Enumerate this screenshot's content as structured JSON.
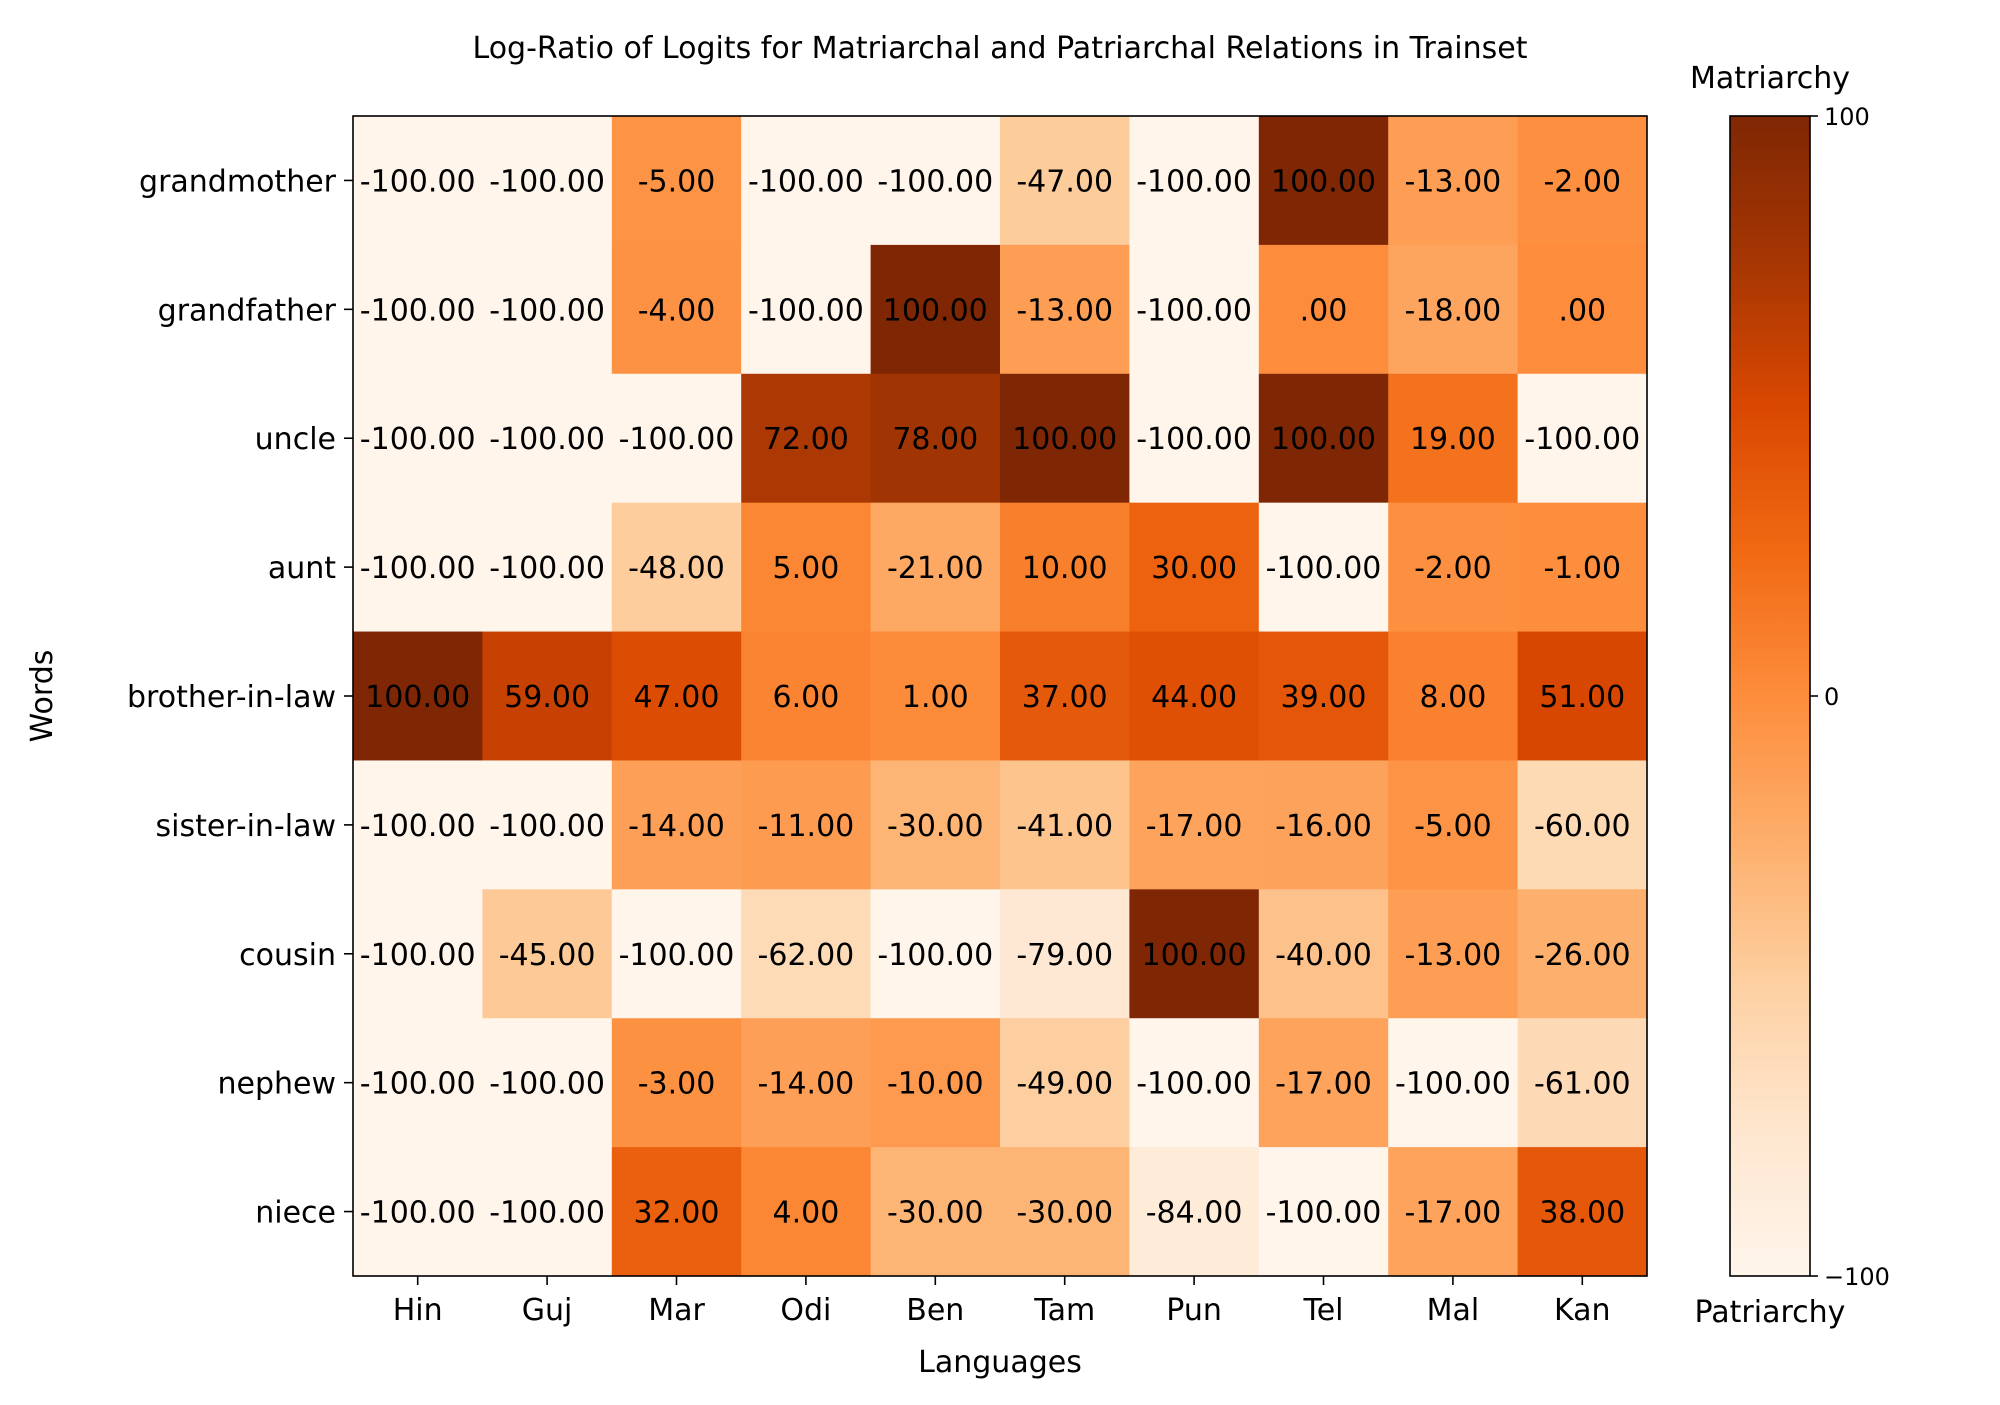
{
  "chart_data": {
    "type": "heatmap",
    "title": "Log-Ratio of Logits for Matriarchal and Patriarchal Relations in Trainset",
    "xlabel": "Languages",
    "ylabel": "Words",
    "x_categories": [
      "Hin",
      "Guj",
      "Mar",
      "Odi",
      "Ben",
      "Tam",
      "Pun",
      "Tel",
      "Mal",
      "Kan"
    ],
    "y_categories": [
      "grandmother",
      "grandfather",
      "uncle",
      "aunt",
      "brother-in-law",
      "sister-in-law",
      "cousin",
      "nephew",
      "niece"
    ],
    "values": [
      [
        -100,
        -100,
        -5,
        -100,
        -100,
        -47,
        -100,
        100,
        -13,
        -2
      ],
      [
        -100,
        -100,
        -4,
        -100,
        100,
        -13,
        -100,
        0,
        -18,
        0
      ],
      [
        -100,
        -100,
        -100,
        72,
        78,
        100,
        -100,
        100,
        19,
        -100
      ],
      [
        -100,
        -100,
        -48,
        5,
        -21,
        10,
        30,
        -100,
        -2,
        -1
      ],
      [
        100,
        59,
        47,
        6,
        1,
        37,
        44,
        39,
        8,
        51
      ],
      [
        -100,
        -100,
        -14,
        -11,
        -30,
        -41,
        -17,
        -16,
        -5,
        -60
      ],
      [
        -100,
        -45,
        -100,
        -62,
        -100,
        -79,
        100,
        -40,
        -13,
        -26
      ],
      [
        -100,
        -100,
        -3,
        -14,
        -10,
        -49,
        -100,
        -17,
        -100,
        -61
      ],
      [
        -100,
        -100,
        32,
        4,
        -30,
        -30,
        -84,
        -100,
        -17,
        38
      ]
    ],
    "cell_labels": [
      [
        "-100.00",
        "-100.00",
        "-5.00",
        "-100.00",
        "-100.00",
        "-47.00",
        "-100.00",
        "100.00",
        "-13.00",
        "-2.00"
      ],
      [
        "-100.00",
        "-100.00",
        "-4.00",
        "-100.00",
        "100.00",
        "-13.00",
        "-100.00",
        ".00",
        "-18.00",
        ".00"
      ],
      [
        "-100.00",
        "-100.00",
        "-100.00",
        "72.00",
        "78.00",
        "100.00",
        "-100.00",
        "100.00",
        "19.00",
        "-100.00"
      ],
      [
        "-100.00",
        "-100.00",
        "-48.00",
        "5.00",
        "-21.00",
        "10.00",
        "30.00",
        "-100.00",
        "-2.00",
        "-1.00"
      ],
      [
        "100.00",
        "59.00",
        "47.00",
        "6.00",
        "1.00",
        "37.00",
        "44.00",
        "39.00",
        "8.00",
        "51.00"
      ],
      [
        "-100.00",
        "-100.00",
        "-14.00",
        "-11.00",
        "-30.00",
        "-41.00",
        "-17.00",
        "-16.00",
        "-5.00",
        "-60.00"
      ],
      [
        "-100.00",
        "-45.00",
        "-100.00",
        "-62.00",
        "-100.00",
        "-79.00",
        "100.00",
        "-40.00",
        "-13.00",
        "-26.00"
      ],
      [
        "-100.00",
        "-100.00",
        "-3.00",
        "-14.00",
        "-10.00",
        "-49.00",
        "-100.00",
        "-17.00",
        "-100.00",
        "-61.00"
      ],
      [
        "-100.00",
        "-100.00",
        "32.00",
        "4.00",
        "-30.00",
        "-30.00",
        "-84.00",
        "-100.00",
        "-17.00",
        "38.00"
      ]
    ],
    "colormap": "Oranges",
    "colormap_stops": [
      "#fff5eb",
      "#fee6ce",
      "#fdd0a2",
      "#fdae6b",
      "#fd8d3c",
      "#f16913",
      "#d94801",
      "#a63603",
      "#7f2704"
    ],
    "vmin": -100,
    "vmax": 100,
    "colorbar": {
      "ticks": [
        100,
        0,
        -100
      ],
      "tick_labels": [
        "100",
        "0",
        "−100"
      ],
      "top_label": "Matriarchy",
      "bottom_label": "Patriarchy"
    },
    "grid": false,
    "legend": "none"
  }
}
